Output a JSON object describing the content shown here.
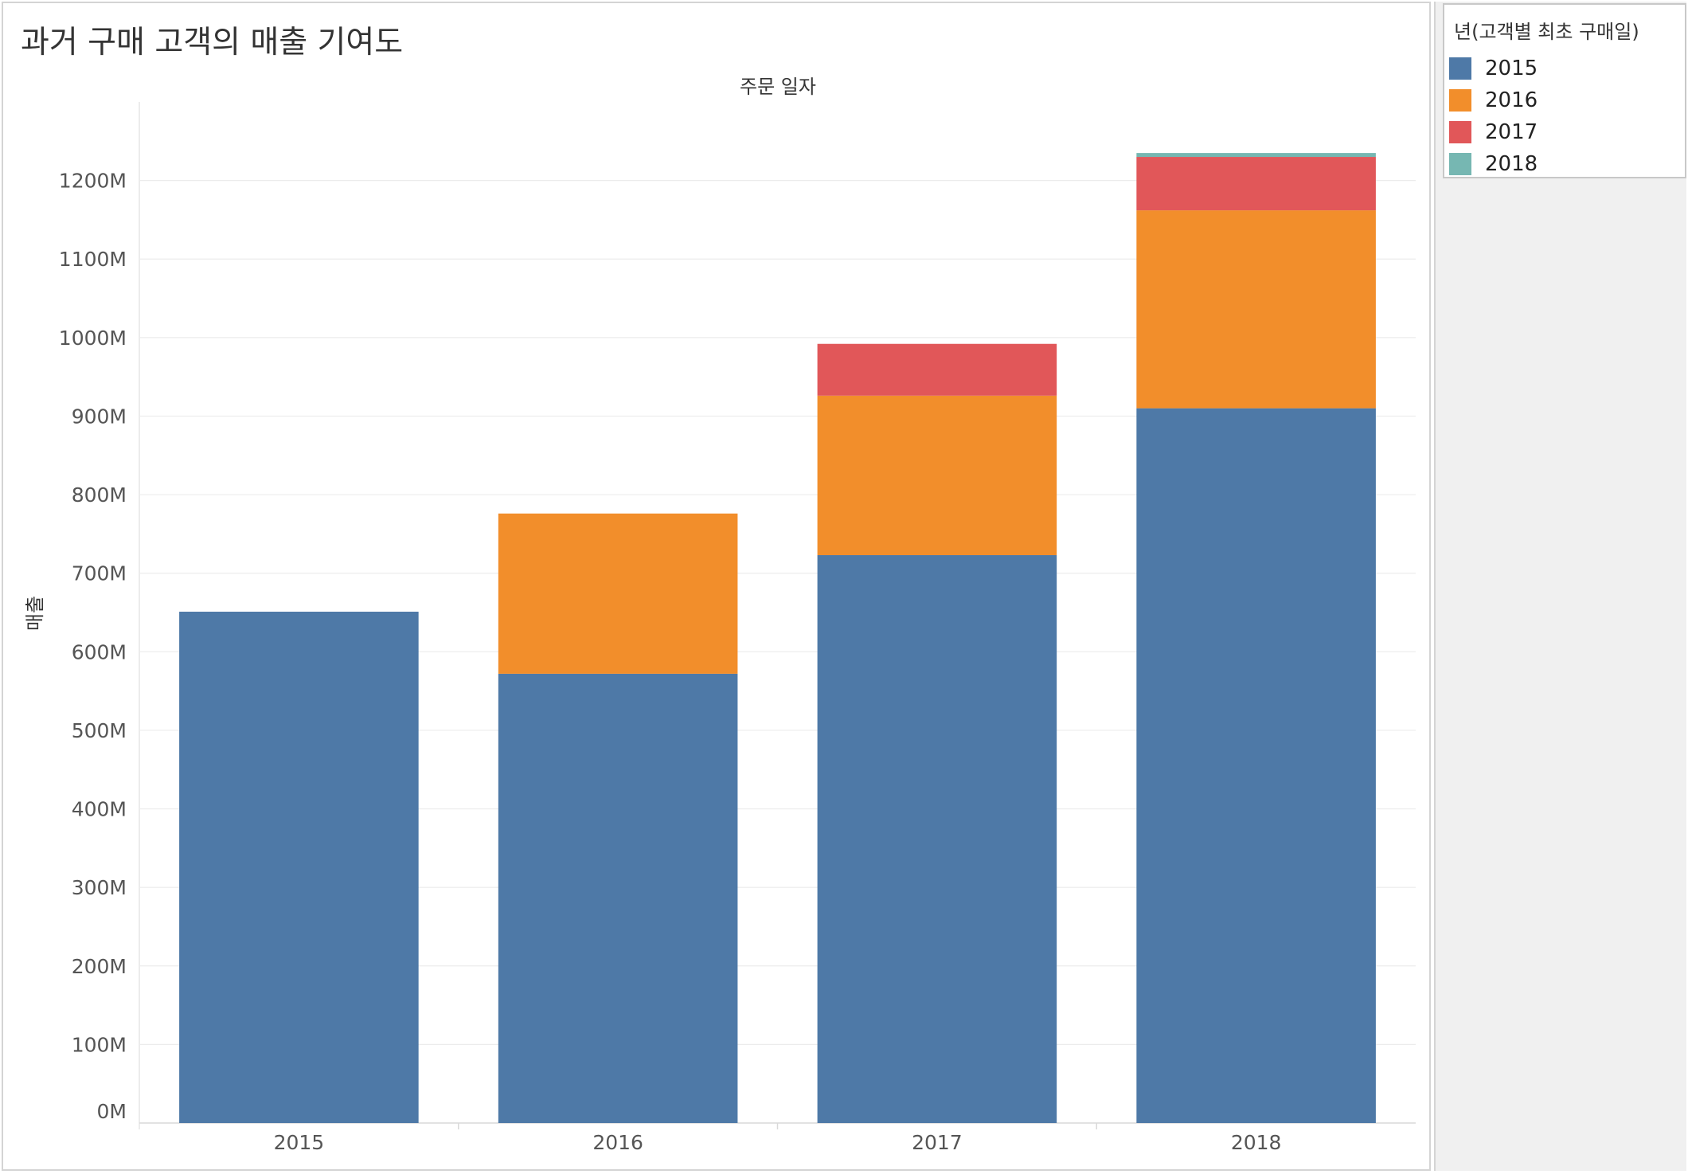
{
  "chart_data": {
    "type": "bar",
    "stacked": true,
    "title": "과거 구매 고객의 매출 기여도",
    "column_header": "주문 일자",
    "ylabel": "매출",
    "xlabel": "",
    "categories": [
      "2015",
      "2016",
      "2017",
      "2018"
    ],
    "y_unit_suffix": "M",
    "ylim": [
      0,
      1300
    ],
    "yticks": [
      0,
      100,
      200,
      300,
      400,
      500,
      600,
      700,
      800,
      900,
      1000,
      1100,
      1200
    ],
    "grid": true,
    "legend": {
      "title": "년(고객별 최초 구매일)",
      "placement": "right"
    },
    "series": [
      {
        "name": "2015",
        "color": "#4e79a7",
        "values": [
          651,
          572,
          723,
          910
        ]
      },
      {
        "name": "2016",
        "color": "#f28e2b",
        "values": [
          0,
          204,
          203,
          252
        ]
      },
      {
        "name": "2017",
        "color": "#e15759",
        "values": [
          0,
          0,
          66,
          68
        ]
      },
      {
        "name": "2018",
        "color": "#76b7b2",
        "values": [
          0,
          0,
          0,
          5
        ]
      }
    ]
  }
}
